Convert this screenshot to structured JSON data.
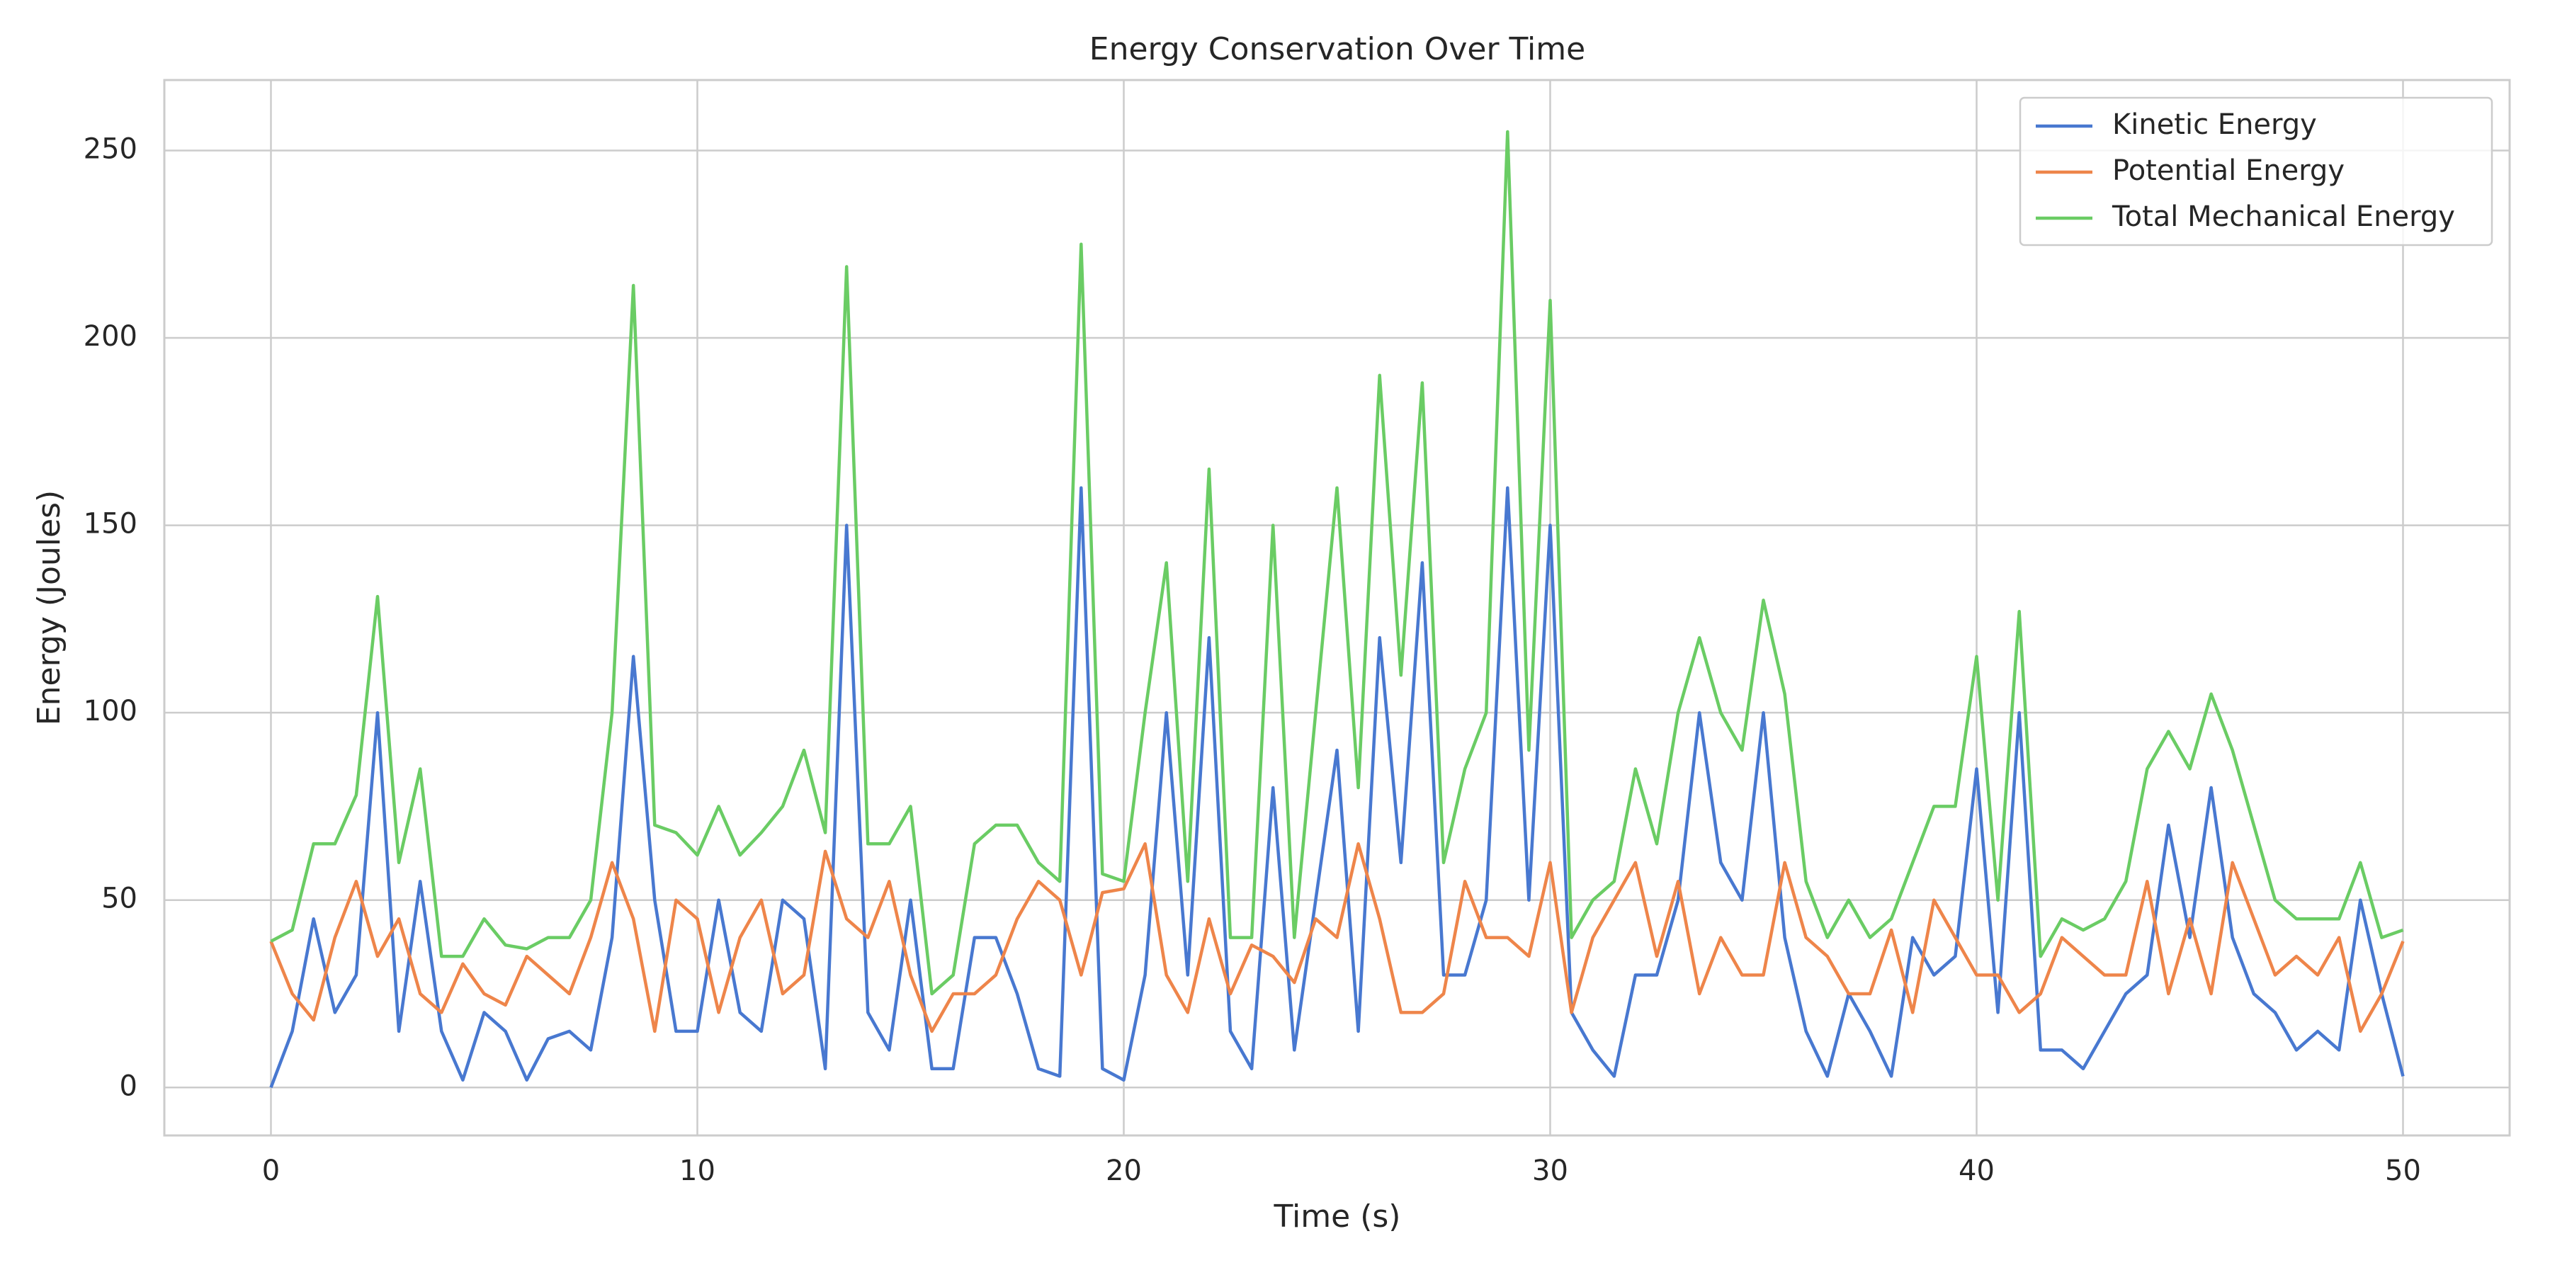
{
  "chart_data": {
    "type": "line",
    "title": "Energy Conservation Over Time",
    "xlabel": "Time (s)",
    "ylabel": "Energy (Joules)",
    "x": [
      0,
      0.5,
      1,
      1.5,
      2,
      2.5,
      3,
      3.5,
      4,
      4.5,
      5,
      5.5,
      6,
      6.5,
      7,
      7.5,
      8,
      8.5,
      9,
      9.5,
      10,
      10.5,
      11,
      11.5,
      12,
      12.5,
      13,
      13.5,
      14,
      14.5,
      15,
      15.5,
      16,
      16.5,
      17,
      17.5,
      18,
      18.5,
      19,
      19.5,
      20,
      20.5,
      21,
      21.5,
      22,
      22.5,
      23,
      23.5,
      24,
      24.5,
      25,
      25.5,
      26,
      26.5,
      27,
      27.5,
      28,
      28.5,
      29,
      29.5,
      30,
      30.5,
      31,
      31.5,
      32,
      32.5,
      33,
      33.5,
      34,
      34.5,
      35,
      35.5,
      36,
      36.5,
      37,
      37.5,
      38,
      38.5,
      39,
      39.5,
      40,
      40.5,
      41,
      41.5,
      42,
      42.5,
      43,
      43.5,
      44,
      44.5,
      45,
      45.5,
      46,
      46.5,
      47,
      47.5,
      48,
      48.5,
      49,
      49.5,
      50
    ],
    "series": [
      {
        "name": "Kinetic Energy",
        "color": "#4878d0",
        "values": [
          0,
          15,
          45,
          20,
          30,
          100,
          15,
          55,
          15,
          2,
          20,
          15,
          2,
          13,
          15,
          10,
          40,
          115,
          50,
          15,
          15,
          50,
          20,
          15,
          50,
          45,
          5,
          150,
          20,
          10,
          50,
          5,
          5,
          40,
          40,
          25,
          5,
          3,
          160,
          5,
          2,
          30,
          100,
          30,
          120,
          15,
          5,
          80,
          10,
          50,
          90,
          15,
          120,
          60,
          140,
          30,
          30,
          50,
          160,
          50,
          150,
          20,
          10,
          3,
          30,
          30,
          50,
          100,
          60,
          50,
          100,
          40,
          15,
          3,
          25,
          15,
          3,
          40,
          30,
          35,
          85,
          20,
          100,
          10,
          10,
          5,
          15,
          25,
          30,
          70,
          40,
          80,
          40,
          25,
          20,
          10,
          15,
          10,
          50,
          25,
          3
        ]
      },
      {
        "name": "Potential Energy",
        "color": "#ee854a",
        "values": [
          39,
          25,
          18,
          40,
          55,
          35,
          45,
          25,
          20,
          33,
          25,
          22,
          35,
          30,
          25,
          40,
          60,
          45,
          15,
          50,
          45,
          20,
          40,
          50,
          25,
          30,
          63,
          45,
          40,
          55,
          30,
          15,
          25,
          25,
          30,
          45,
          55,
          50,
          30,
          52,
          53,
          65,
          30,
          20,
          45,
          25,
          38,
          35,
          28,
          45,
          40,
          65,
          45,
          20,
          20,
          25,
          55,
          40,
          40,
          35,
          60,
          20,
          40,
          50,
          60,
          35,
          55,
          25,
          40,
          30,
          30,
          60,
          40,
          35,
          25,
          25,
          42,
          20,
          50,
          40,
          30,
          30,
          20,
          25,
          40,
          35,
          30,
          30,
          55,
          25,
          45,
          25,
          60,
          45,
          30,
          35,
          30,
          40,
          15,
          25,
          39
        ]
      },
      {
        "name": "Total Mechanical Energy",
        "color": "#6acc64",
        "values": [
          39,
          42,
          65,
          65,
          78,
          131,
          60,
          85,
          35,
          35,
          45,
          38,
          37,
          40,
          40,
          50,
          100,
          214,
          70,
          68,
          62,
          75,
          62,
          68,
          75,
          90,
          68,
          219,
          65,
          65,
          75,
          25,
          30,
          65,
          70,
          70,
          60,
          55,
          225,
          57,
          55,
          100,
          140,
          55,
          165,
          40,
          40,
          150,
          40,
          100,
          160,
          80,
          190,
          110,
          188,
          60,
          85,
          100,
          255,
          90,
          210,
          40,
          50,
          55,
          85,
          65,
          100,
          120,
          100,
          90,
          130,
          105,
          55,
          40,
          50,
          40,
          45,
          60,
          75,
          75,
          115,
          50,
          127,
          35,
          45,
          42,
          45,
          55,
          85,
          95,
          85,
          105,
          90,
          70,
          50,
          45,
          45,
          45,
          60,
          40,
          42
        ]
      }
    ],
    "xlim": [
      -2.5,
      52.5
    ],
    "ylim": [
      -12.8,
      268.8
    ],
    "xticks": [
      0,
      10,
      20,
      30,
      40,
      50
    ],
    "yticks": [
      0,
      50,
      100,
      150,
      200,
      250
    ],
    "grid": true,
    "legend": "upper right"
  }
}
